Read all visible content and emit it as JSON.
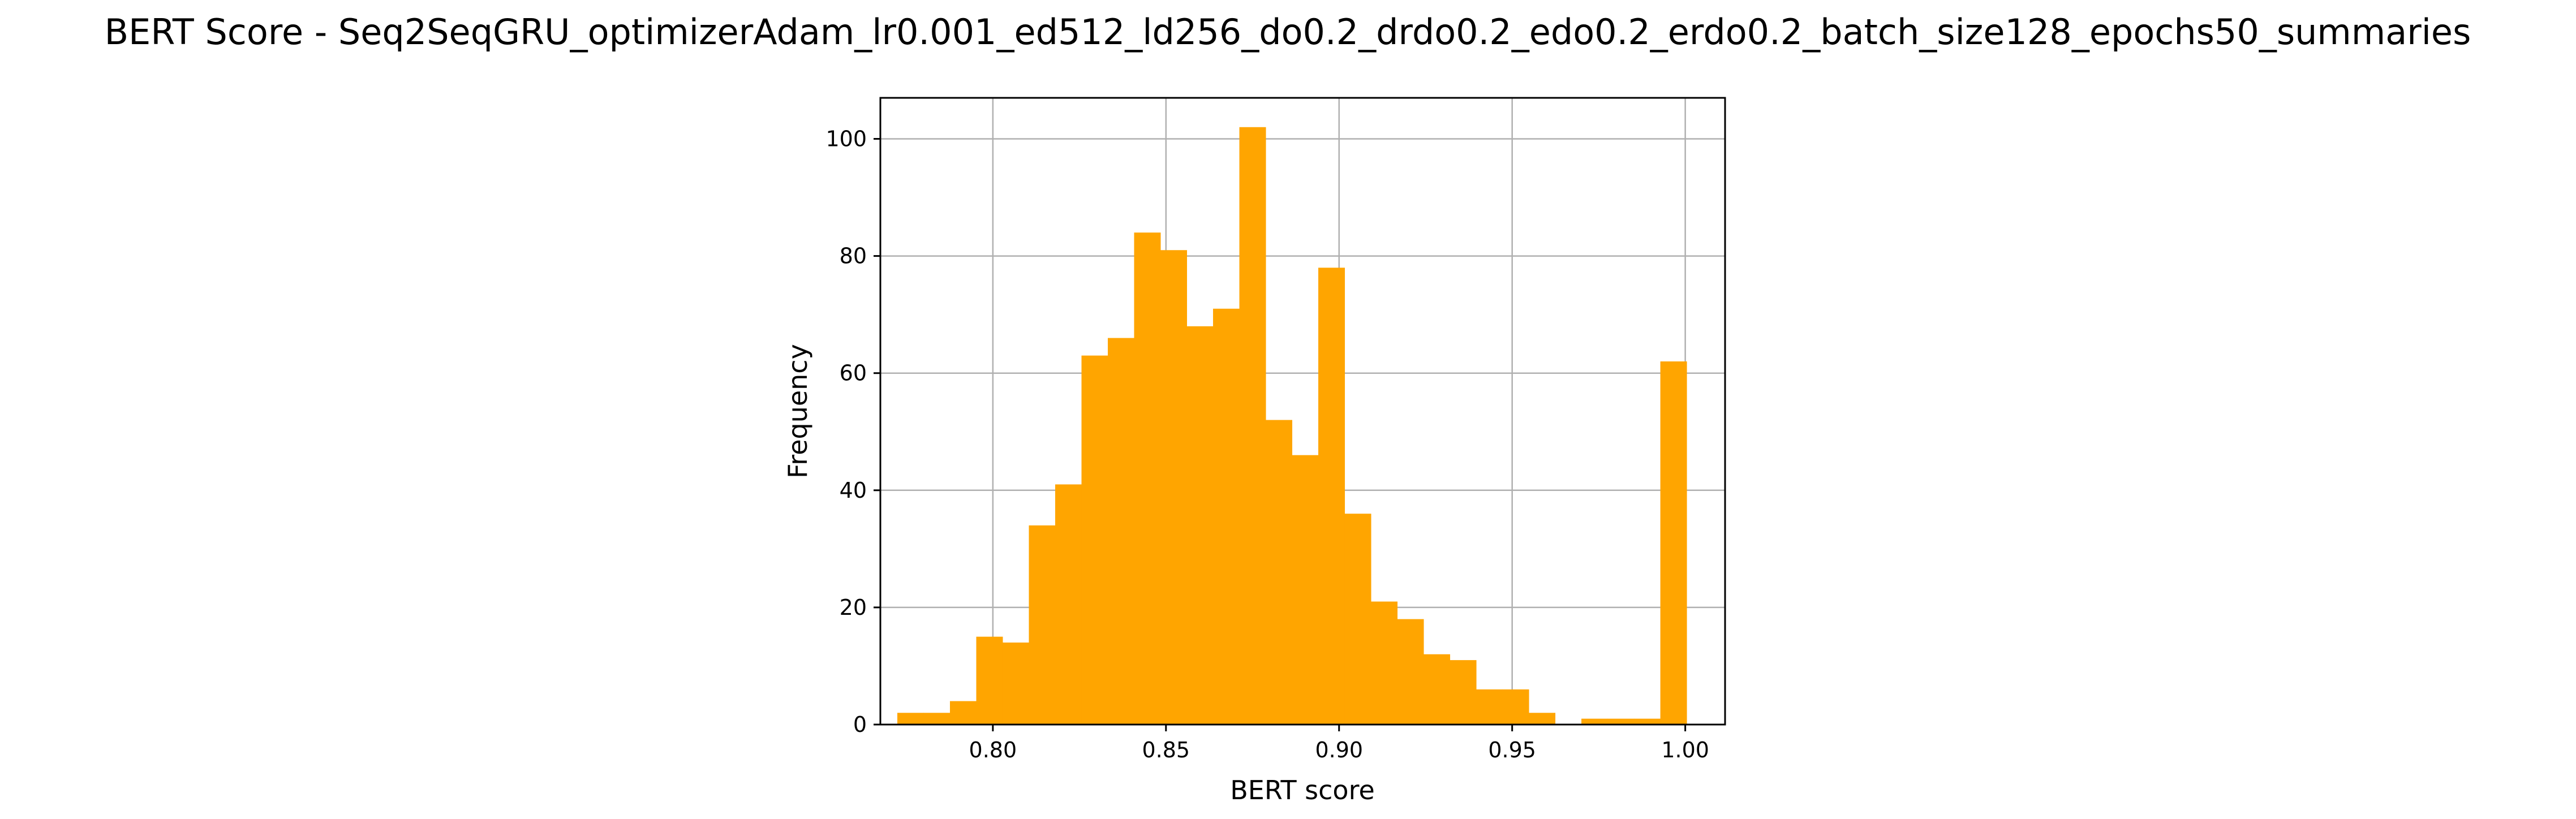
{
  "chart_data": {
    "type": "bar",
    "title": "BERT Score - Seq2SeqGRU_optimizerAdam_lr0.001_ed512_ld256_do0.2_drdo0.2_edo0.2_erdo0.2_batch_size128_epochs50_summaries",
    "xlabel": "BERT score",
    "ylabel": "Frequency",
    "xlim": [
      0.7675,
      1.0115
    ],
    "ylim": [
      0,
      107
    ],
    "grid": true,
    "bar_color": "#FFA500",
    "bins": {
      "start": 0.7724,
      "width": 0.0076,
      "counts": [
        2,
        2,
        4,
        15,
        14,
        34,
        41,
        63,
        66,
        84,
        81,
        68,
        71,
        102,
        52,
        46,
        78,
        36,
        21,
        18,
        12,
        11,
        6,
        6,
        2,
        0,
        1,
        1,
        1,
        62
      ]
    },
    "xticks": [
      0.8,
      0.85,
      0.9,
      0.95,
      1.0
    ],
    "xtick_labels": [
      "0.80",
      "0.85",
      "0.90",
      "0.95",
      "1.00"
    ],
    "yticks": [
      0,
      20,
      40,
      60,
      80,
      100
    ],
    "ytick_labels": [
      "0",
      "20",
      "40",
      "60",
      "80",
      "100"
    ]
  }
}
